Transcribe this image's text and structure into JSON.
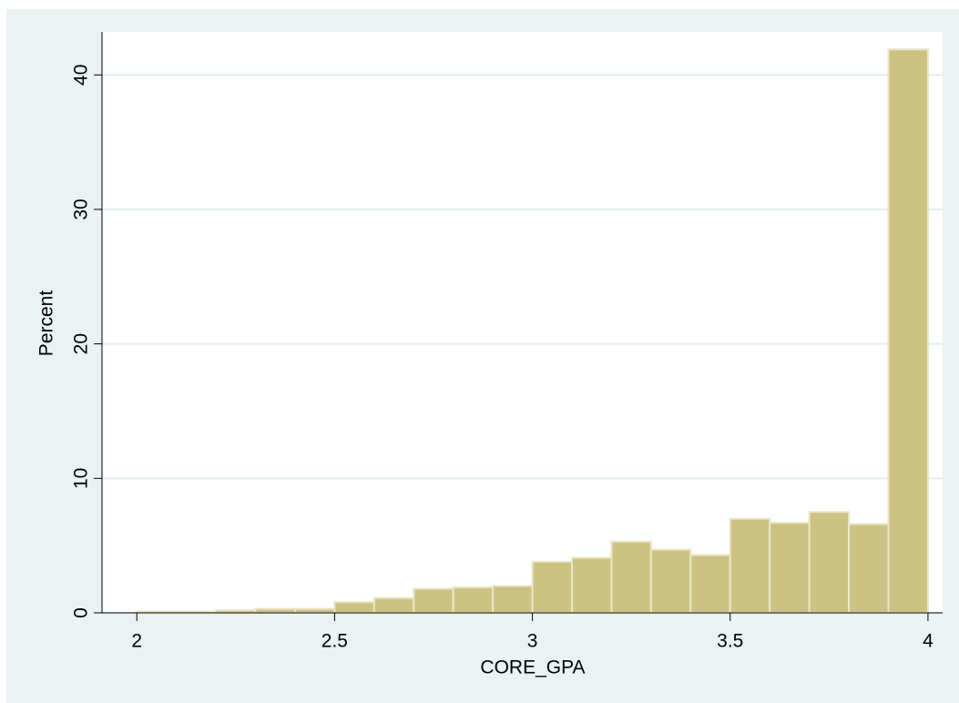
{
  "chart_data": {
    "type": "histogram",
    "xlabel": "CORE_GPA",
    "ylabel": "Percent",
    "bins": [
      2.0,
      2.1,
      2.2,
      2.3,
      2.4,
      2.5,
      2.6,
      2.7,
      2.8,
      2.9,
      3.0,
      3.1,
      3.2,
      3.3,
      3.4,
      3.5,
      3.6,
      3.7,
      3.8,
      3.9,
      4.0
    ],
    "values": [
      0.1,
      0.1,
      0.2,
      0.3,
      0.3,
      0.8,
      1.1,
      1.8,
      1.9,
      2.0,
      3.8,
      4.1,
      5.3,
      4.7,
      4.3,
      7.0,
      6.7,
      7.5,
      6.6,
      41.9
    ],
    "color": "#ccc383",
    "xlim": [
      1.912,
      4.037
    ],
    "ylim": [
      0,
      43.2
    ],
    "xticks": [
      2,
      2.5,
      3,
      3.5,
      4
    ],
    "yticks": [
      0,
      10,
      20,
      30,
      40
    ],
    "grid": true
  }
}
